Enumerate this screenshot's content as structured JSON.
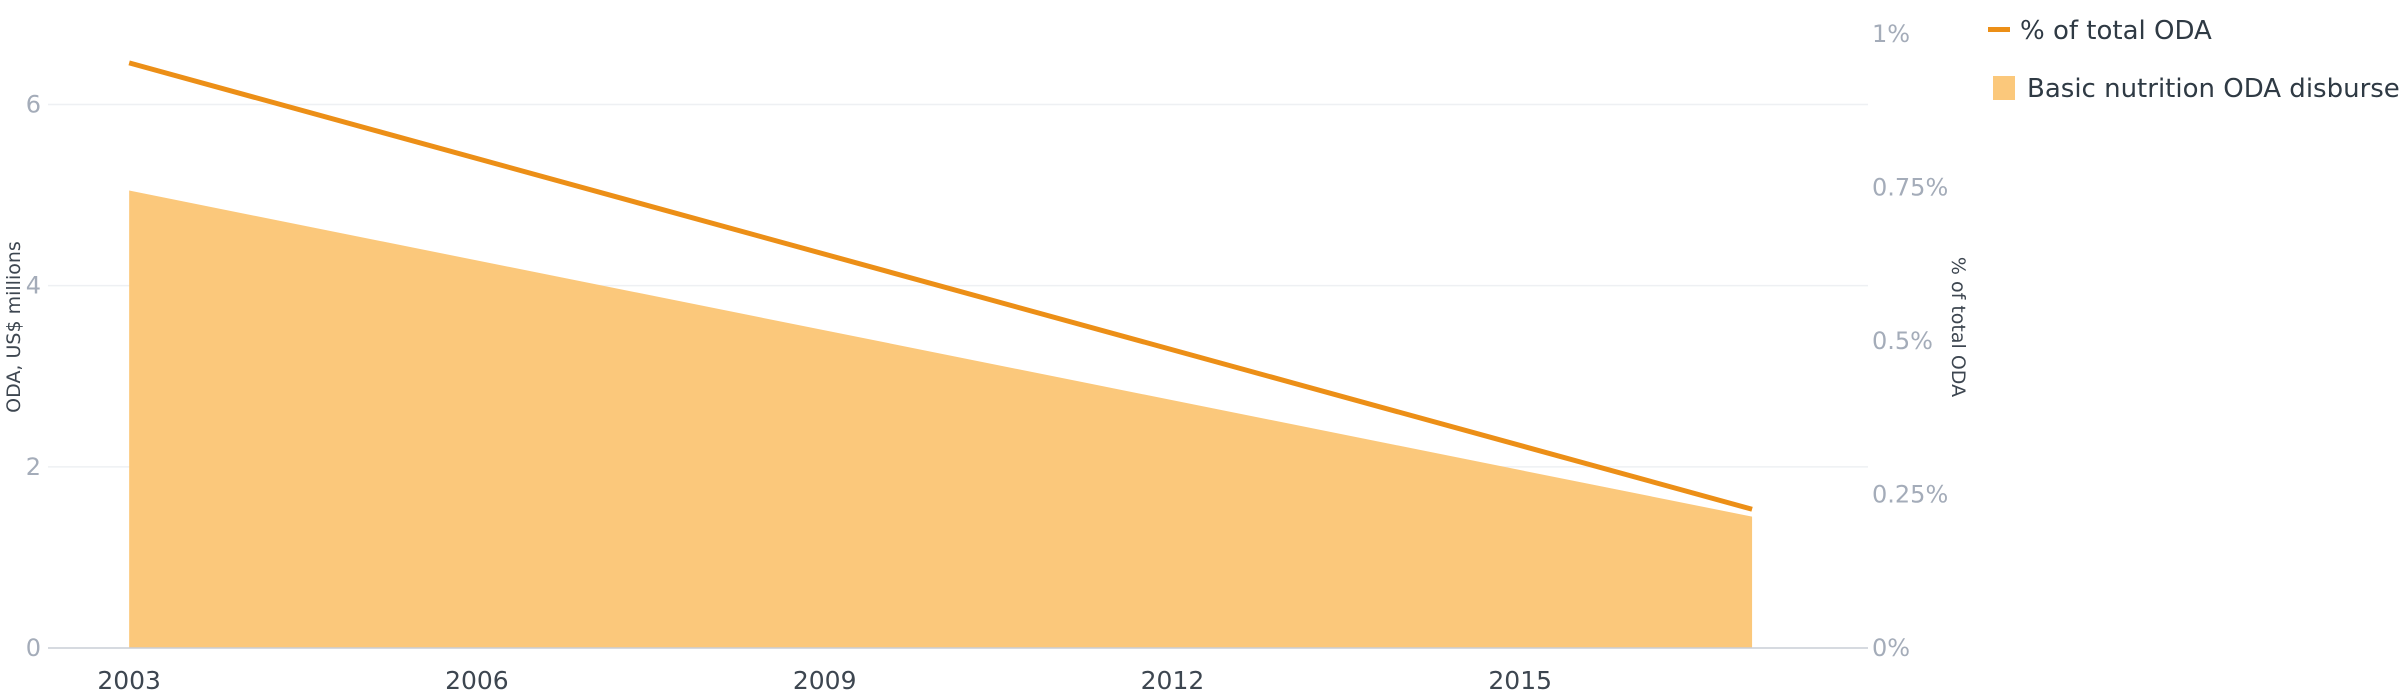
{
  "colors": {
    "line": "#ec8f17",
    "area": "#fbc87b",
    "grid": "#eef0f3",
    "baseline": "#c9ced6",
    "tick_muted": "#a4acb9",
    "text": "#3d4650"
  },
  "chart_data": {
    "type": "area",
    "x_ticks": [
      "2003",
      "2006",
      "2009",
      "2012",
      "2015"
    ],
    "y_left": {
      "label": "ODA, US$ millions",
      "range": [
        0,
        6.8
      ],
      "ticks": [
        0,
        2,
        4,
        6
      ],
      "tick_labels": [
        "0",
        "2",
        "4",
        "6"
      ]
    },
    "y_right": {
      "label": "% of total ODA",
      "range": [
        0,
        1.0
      ],
      "ticks": [
        0,
        0.25,
        0.5,
        0.75,
        1.0
      ],
      "tick_labels": [
        "0%",
        "0.25%",
        "0.5%",
        "0.75%",
        "1%"
      ]
    },
    "x_range": [
      2002.3,
      2018.0
    ],
    "grid": true,
    "legend_position": "top-right",
    "series": [
      {
        "name": "% of total ODA",
        "type": "line",
        "axis": "right",
        "color": "#ec8f17",
        "points": [
          [
            2003,
            0.953
          ],
          [
            2017,
            0.226
          ]
        ]
      },
      {
        "name": "Basic nutrition ODA disbursed",
        "type": "area",
        "axis": "left",
        "color": "#fbc87b",
        "points": [
          [
            2003,
            5.05
          ],
          [
            2017,
            1.45
          ]
        ]
      }
    ]
  }
}
